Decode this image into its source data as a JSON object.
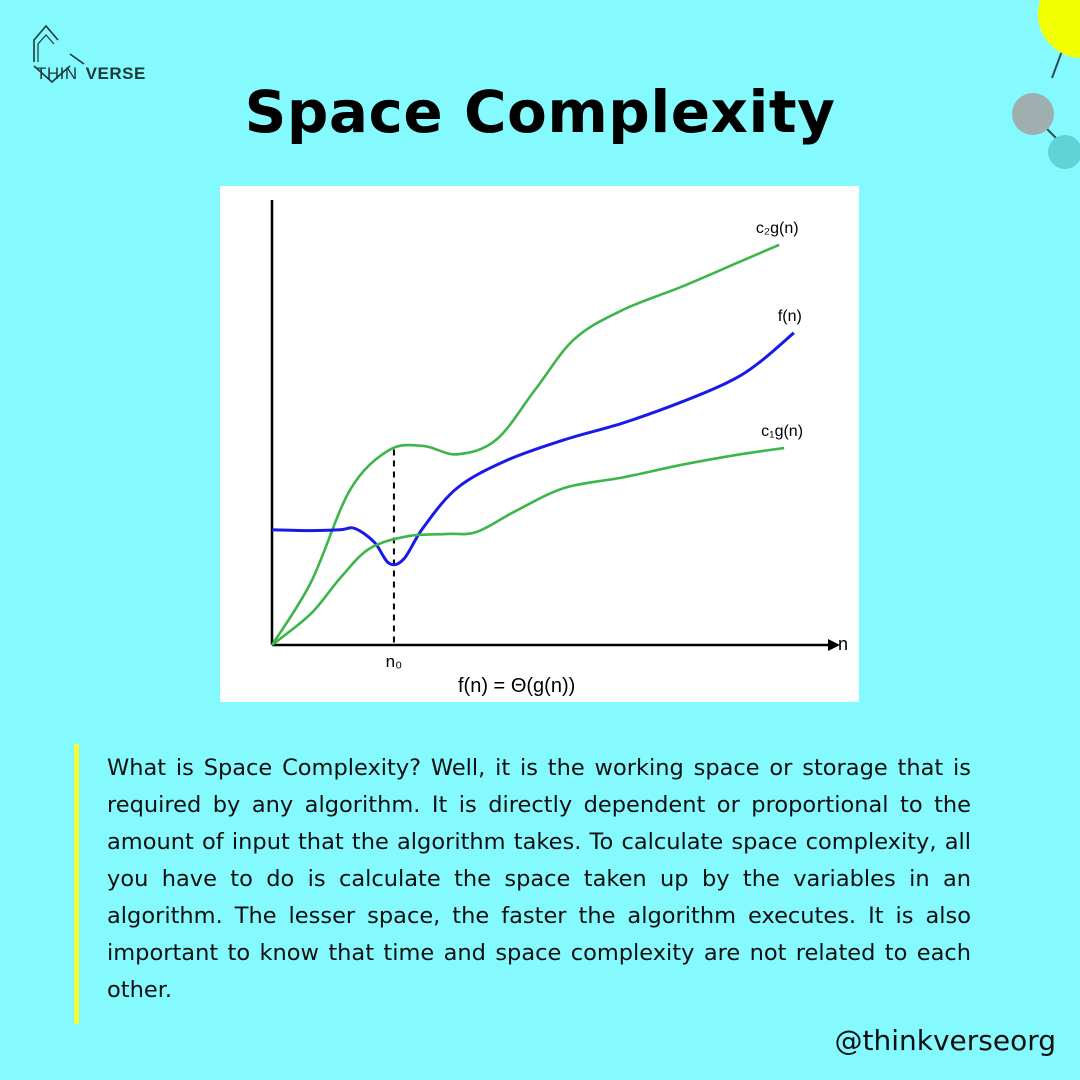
{
  "brand": {
    "logo_left": "THIN",
    "logo_right": "VERSE"
  },
  "title": "Space Complexity",
  "chart_data": {
    "type": "line",
    "x_axis_label": "n",
    "threshold_label": "n₀",
    "formula": "f(n) =",
    "formula_symbol": "Θ",
    "formula_rest": "(g(n))",
    "series": [
      {
        "name": "c₂g(n)",
        "color": "#3DB54A",
        "points": [
          [
            0,
            0
          ],
          [
            0.4,
            1.5
          ],
          [
            0.8,
            3.7
          ],
          [
            1.2,
            4.65
          ],
          [
            1.55,
            4.75
          ],
          [
            1.9,
            4.55
          ],
          [
            2.3,
            4.9
          ],
          [
            2.7,
            6.1
          ],
          [
            3.1,
            7.3
          ],
          [
            3.6,
            8.0
          ],
          [
            4.2,
            8.55
          ],
          [
            4.8,
            9.15
          ],
          [
            5.2,
            9.55
          ]
        ]
      },
      {
        "name": "f(n)",
        "color": "#1A1AE6",
        "points": [
          [
            0,
            2.75
          ],
          [
            0.4,
            2.73
          ],
          [
            0.7,
            2.75
          ],
          [
            0.85,
            2.78
          ],
          [
            1.05,
            2.45
          ],
          [
            1.2,
            1.95
          ],
          [
            1.35,
            2.05
          ],
          [
            1.55,
            2.8
          ],
          [
            1.9,
            3.75
          ],
          [
            2.4,
            4.4
          ],
          [
            3.0,
            4.9
          ],
          [
            3.6,
            5.3
          ],
          [
            4.2,
            5.8
          ],
          [
            4.7,
            6.3
          ],
          [
            5.0,
            6.75
          ],
          [
            5.35,
            7.45
          ]
        ]
      },
      {
        "name": "c₁g(n)",
        "color": "#3DB54A",
        "points": [
          [
            0,
            0
          ],
          [
            0.4,
            0.75
          ],
          [
            0.7,
            1.6
          ],
          [
            1.0,
            2.3
          ],
          [
            1.4,
            2.6
          ],
          [
            1.8,
            2.65
          ],
          [
            2.1,
            2.7
          ],
          [
            2.5,
            3.2
          ],
          [
            3.0,
            3.75
          ],
          [
            3.6,
            4.0
          ],
          [
            4.2,
            4.3
          ],
          [
            4.8,
            4.55
          ],
          [
            5.25,
            4.7
          ]
        ]
      }
    ],
    "threshold_x": 1.25,
    "xlim": [
      0,
      5.7
    ],
    "ylim": [
      0,
      10.5
    ],
    "grid": false,
    "legend": "inline labels at line ends"
  },
  "description": "What is Space Complexity? Well, it is the working space or storage that is required by any algorithm. It is directly dependent or proportional to the amount of input that the algorithm takes. To calculate space complexity, all you have to do is calculate the space taken up by the variables in an algorithm. The lesser space, the faster the algorithm executes. It is also important to know that time and space complexity are not related to each other.",
  "handle": "@thinkverseorg",
  "colors": {
    "background": "#84FAFF",
    "accent_yellow": "#F0FF3A",
    "green_curve": "#3DB54A",
    "blue_curve": "#1A1AE6"
  }
}
